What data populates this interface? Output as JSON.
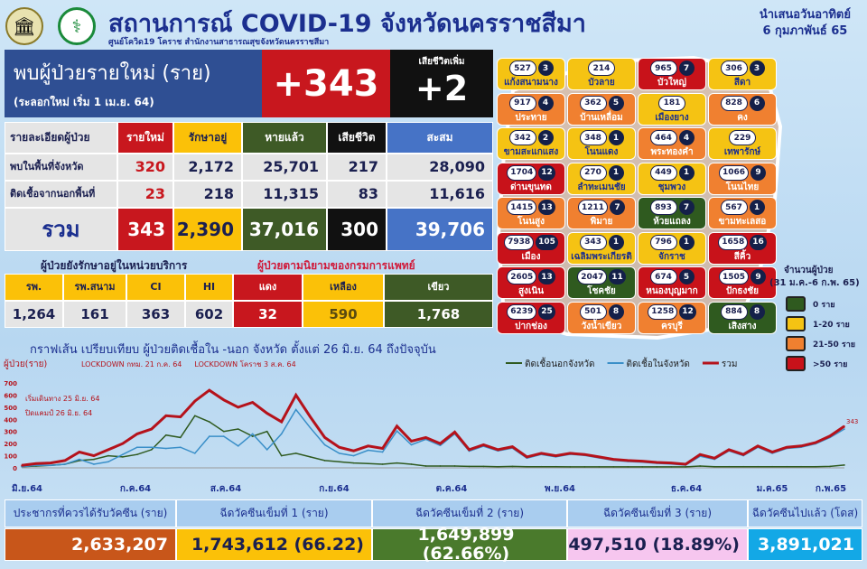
{
  "header": {
    "title": "สถานการณ์ COVID-19 จังหวัดนครราชสีมา",
    "subtitle": "ศูนย์โควิด19 โคราช สำนักงานสาธารณสุขจังหวัดนครราชสีมา",
    "date_line1": "นำเสนอวันอาทิตย์",
    "date_line2": "6 กุมภาพันธ์ 65"
  },
  "summary": {
    "label": "พบผู้ป่วยรายใหม่ (ราย)",
    "sublabel": "(ระลอกใหม่ เริ่ม 1 เม.ย. 64)",
    "new_cases": "+343",
    "death_label": "เสียชีวิตเพิ่ม",
    "new_deaths": "+2"
  },
  "detail_table": {
    "headers": [
      "รายละเอียดผู้ป่วย",
      "รายใหม่",
      "รักษาอยู่",
      "หายแล้ว",
      "เสียชีวิต",
      "สะสม"
    ],
    "rows": [
      [
        "พบในพื้นที่จังหวัด",
        "320",
        "2,172",
        "25,701",
        "217",
        "28,090"
      ],
      [
        "ติดเชื้อจากนอกพื้นที่",
        "23",
        "218",
        "11,315",
        "83",
        "11,616"
      ]
    ],
    "total": [
      "รวม",
      "343",
      "2,390",
      "37,016",
      "300",
      "39,706"
    ]
  },
  "service_title": "ผู้ป่วยยังรักษาอยู่ในหน่วยบริการ",
  "severity_title": "ผู้ป่วยตามนิยามของกรมการแพทย์",
  "service_table": {
    "headers": [
      "รพ.",
      "รพ.สนาม",
      "CI",
      "HI",
      "แดง",
      "เหลือง",
      "เขียว"
    ],
    "values": [
      "1,264",
      "161",
      "363",
      "602",
      "32",
      "590",
      "1,768"
    ]
  },
  "map": {
    "legend_title": "จำนวนผู้ป่วย",
    "legend_period": "(31 ม.ค.-6 ก.พ. 65)",
    "legend": [
      {
        "label": "0 ราย",
        "color": "#2f5a1f"
      },
      {
        "label": "1-20 ราย",
        "color": "#f5c313"
      },
      {
        "label": "21-50 ราย",
        "color": "#f08030"
      },
      {
        "label": ">50 ราย",
        "color": "#c8121a"
      }
    ],
    "districts": [
      {
        "name": "แก้งสนามนาง",
        "total": "527",
        "new": "3",
        "level": 1
      },
      {
        "name": "บัวลาย",
        "total": "214",
        "new": "",
        "level": 1
      },
      {
        "name": "บัวใหญ่",
        "total": "965",
        "new": "7",
        "level": 3
      },
      {
        "name": "สีดา",
        "total": "306",
        "new": "3",
        "level": 1
      },
      {
        "name": "ประทาย",
        "total": "917",
        "new": "4",
        "level": 2
      },
      {
        "name": "บ้านเหลื่อม",
        "total": "362",
        "new": "5",
        "level": 2
      },
      {
        "name": "เมืองยาง",
        "total": "181",
        "new": "",
        "level": 1
      },
      {
        "name": "คง",
        "total": "828",
        "new": "6",
        "level": 2
      },
      {
        "name": "ขามสะแกแสง",
        "total": "342",
        "new": "2",
        "level": 1
      },
      {
        "name": "โนนแดง",
        "total": "348",
        "new": "1",
        "level": 1
      },
      {
        "name": "พระทองคำ",
        "total": "464",
        "new": "4",
        "level": 2
      },
      {
        "name": "เทพารักษ์",
        "total": "229",
        "new": "",
        "level": 1
      },
      {
        "name": "ด่านขุนทด",
        "total": "1704",
        "new": "12",
        "level": 3
      },
      {
        "name": "ลำทะเมนชัย",
        "total": "270",
        "new": "1",
        "level": 1
      },
      {
        "name": "ชุมพวง",
        "total": "449",
        "new": "1",
        "level": 1
      },
      {
        "name": "โนนไทย",
        "total": "1066",
        "new": "9",
        "level": 2
      },
      {
        "name": "โนนสูง",
        "total": "1415",
        "new": "13",
        "level": 2
      },
      {
        "name": "พิมาย",
        "total": "1211",
        "new": "7",
        "level": 2
      },
      {
        "name": "ห้วยแถลง",
        "total": "893",
        "new": "7",
        "level": 0
      },
      {
        "name": "ขามทะเลสอ",
        "total": "567",
        "new": "1",
        "level": 2
      },
      {
        "name": "เมือง",
        "total": "7938",
        "new": "105",
        "level": 3
      },
      {
        "name": "เฉลิมพระเกียรติ",
        "total": "343",
        "new": "1",
        "level": 1
      },
      {
        "name": "จักราช",
        "total": "796",
        "new": "1",
        "level": 1
      },
      {
        "name": "สีคิ้ว",
        "total": "1658",
        "new": "16",
        "level": 3
      },
      {
        "name": "สูงเนิน",
        "total": "2605",
        "new": "13",
        "level": 3
      },
      {
        "name": "โชคชัย",
        "total": "2047",
        "new": "11",
        "level": 0
      },
      {
        "name": "หนองบุญมาก",
        "total": "674",
        "new": "5",
        "level": 3
      },
      {
        "name": "ปักธงชัย",
        "total": "1505",
        "new": "9",
        "level": 3
      },
      {
        "name": "ปากช่อง",
        "total": "6239",
        "new": "25",
        "level": 3
      },
      {
        "name": "วังน้ำเขียว",
        "total": "501",
        "new": "8",
        "level": 2
      },
      {
        "name": "ครบุรี",
        "total": "1258",
        "new": "12",
        "level": 2
      },
      {
        "name": "เสิงสาง",
        "total": "884",
        "new": "8",
        "level": 0
      }
    ]
  },
  "chart_data": {
    "type": "line",
    "title": "กราฟเส้น เปรียบเทียบ ผู้ป่วยติดเชื้อใน -นอก จังหวัด ตั้งแต่ 26 มิ.ย. 64 ถึงปัจจุบัน",
    "ylabel": "ผู้ป่วย(ราย)",
    "ylim": [
      0,
      700
    ],
    "yticks": [
      0,
      100,
      200,
      300,
      400,
      500,
      600,
      700
    ],
    "months": [
      "มิ.ย.64",
      "ก.ค.64",
      "ส.ค.64",
      "ก.ย.64",
      "ต.ค.64",
      "พ.ย.64",
      "ธ.ค.64",
      "ม.ค.65",
      "ก.พ.65"
    ],
    "annotations": [
      "LOCKDOWN กทม. 21 ก.ค. 64",
      "LOCKDOWN โคราช 3 ส.ค. 64",
      "เริ่มเดินทาง 25 มิ.ย. 64",
      "ปิดแคมป์ 26 มิ.ย. 64"
    ],
    "legend_position": "top-right",
    "series": [
      {
        "name": "ติดเชื้อนอกจังหวัด",
        "color": "#2f5a1f",
        "values": [
          10,
          15,
          20,
          30,
          60,
          70,
          100,
          90,
          110,
          150,
          270,
          250,
          430,
          380,
          300,
          320,
          260,
          300,
          100,
          120,
          90,
          60,
          50,
          40,
          35,
          30,
          40,
          30,
          15,
          15,
          15,
          12,
          12,
          10,
          12,
          10,
          10,
          10,
          8,
          8,
          8,
          8,
          8,
          8,
          8,
          8,
          8,
          15,
          10,
          10,
          10,
          10,
          10,
          10,
          10,
          10,
          12,
          23
        ]
      },
      {
        "name": "ติดเชื้อในจังหวัด",
        "color": "#3a8fc8",
        "values": [
          10,
          20,
          20,
          30,
          70,
          30,
          50,
          110,
          170,
          170,
          160,
          170,
          120,
          260,
          260,
          180,
          280,
          150,
          280,
          480,
          330,
          190,
          120,
          100,
          145,
          130,
          304,
          190,
          235,
          185,
          280,
          138,
          178,
          140,
          162,
          80,
          110,
          90,
          112,
          102,
          82,
          62,
          52,
          47,
          37,
          32,
          22,
          95,
          70,
          140,
          100,
          170,
          120,
          160,
          170,
          198,
          250,
          320
        ]
      },
      {
        "name": "รวม",
        "color": "#b5121b",
        "values": [
          20,
          35,
          40,
          60,
          130,
          100,
          150,
          200,
          280,
          320,
          430,
          420,
          550,
          640,
          560,
          500,
          540,
          450,
          380,
          600,
          420,
          250,
          170,
          140,
          180,
          160,
          344,
          220,
          250,
          200,
          295,
          150,
          190,
          150,
          174,
          90,
          120,
          100,
          120,
          110,
          90,
          70,
          60,
          55,
          45,
          40,
          30,
          110,
          80,
          150,
          110,
          180,
          130,
          170,
          180,
          208,
          262,
          343
        ]
      }
    ]
  },
  "vaccine": {
    "headers": [
      "ประชากรที่ควรได้รับวัคซีน (ราย)",
      "ฉีดวัคซีนเข็มที่ 1 (ราย)",
      "ฉีดวัคซีนเข็มที่ 2 (ราย)",
      "ฉีดวัคซีนเข็มที่ 3 (ราย)",
      "ฉีดวัคซีนไปแล้ว (โดส)"
    ],
    "values": [
      "2,633,207",
      "1,743,612 (66.22)",
      "1,649,899 (62.66%)",
      "497,510 (18.89%)",
      "3,891,021"
    ],
    "colors": [
      "#c8561a",
      "#fbc108",
      "#4a7a2c",
      "#f6c6ef",
      "#13a8e6"
    ]
  }
}
